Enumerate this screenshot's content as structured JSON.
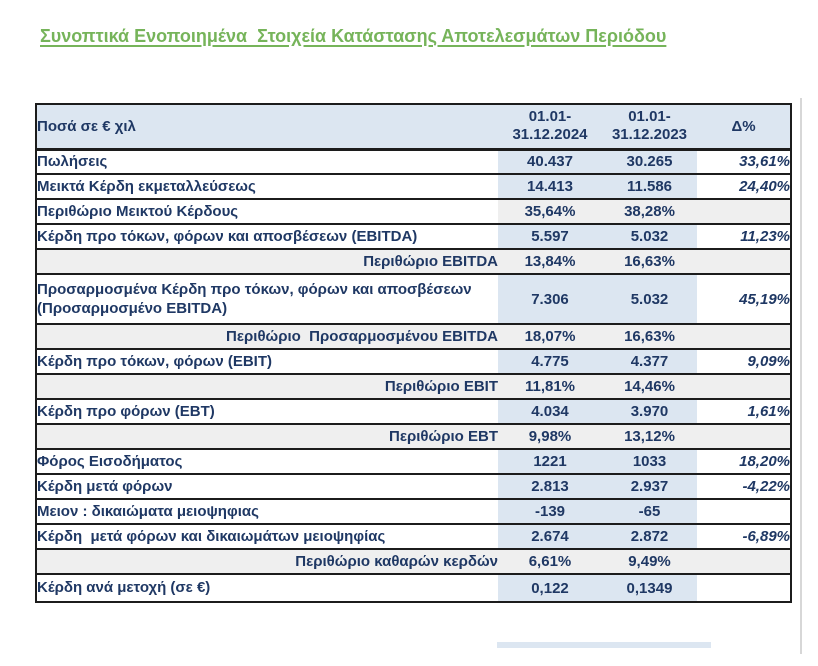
{
  "colors": {
    "title_green": "#76B45A",
    "navy": "#1F3864",
    "accent_blue": "#1F7EC2",
    "cell_blue": "#DCE6F1",
    "cell_gray": "#EFEFEF",
    "border_dark": "#1C1C1C"
  },
  "page_title": "Συνοπτικά Ενοποιημένα  Στοιχεία Κατάστασης Αποτελεσμάτων Περιόδου",
  "table": {
    "header": {
      "col_label": "Ποσά σε € χιλ",
      "col_2024_line1": "01.01-",
      "col_2024_line2": "31.12.2024",
      "col_2023_line1": "01.01-",
      "col_2023_line2": "31.12.2023",
      "col_delta": "Δ%"
    },
    "rows": [
      {
        "label": "Πωλήσεις",
        "v2024": "40.437",
        "v2023": "30.265",
        "delta": "33,61%",
        "type": "data"
      },
      {
        "label": "Μεικτά Κέρδη εκμεταλλεύσεως",
        "v2024": "14.413",
        "v2023": "11.586",
        "delta": "24,40%",
        "type": "data"
      },
      {
        "label": "Περιθώριο Μεικτού Κέρδους",
        "v2024": "35,64%",
        "v2023": "38,28%",
        "delta": "",
        "type": "margin-left"
      },
      {
        "label": "Κέρδη προ τόκων, φόρων και αποσβέσεων (EBITDA)",
        "v2024": "5.597",
        "v2023": "5.032",
        "delta": "11,23%",
        "type": "data"
      },
      {
        "label": "Περιθώριο EBITDA",
        "v2024": "13,84%",
        "v2023": "16,63%",
        "delta": "",
        "type": "margin"
      },
      {
        "label": "Προσαρμοσμένα Κέρδη προ τόκων, φόρων και αποσβέσεων (Προσαρμοσμένο EBITDA)",
        "v2024": "7.306",
        "v2023": "5.032",
        "delta": "45,19%",
        "type": "data-accent"
      },
      {
        "label": "Περιθώριο  Προσαρμοσμένου EBITDA",
        "v2024": "18,07%",
        "v2023": "16,63%",
        "delta": "",
        "type": "margin"
      },
      {
        "label": "Κέρδη προ τόκων, φόρων (EBIT)",
        "v2024": "4.775",
        "v2023": "4.377",
        "delta": "9,09%",
        "type": "data"
      },
      {
        "label": "Περιθώριο EBIT",
        "v2024": "11,81%",
        "v2023": "14,46%",
        "delta": "",
        "type": "margin"
      },
      {
        "label": "Κέρδη προ φόρων (EBT)",
        "v2024": "4.034",
        "v2023": "3.970",
        "delta": "1,61%",
        "type": "data"
      },
      {
        "label": "Περιθώριο EBT",
        "v2024": "9,98%",
        "v2023": "13,12%",
        "delta": "",
        "type": "margin"
      },
      {
        "label": "Φόρος Εισοδήματος",
        "v2024": "1221",
        "v2023": "1033",
        "delta": "18,20%",
        "type": "data"
      },
      {
        "label": "Κέρδη μετά φόρων",
        "v2024": "2.813",
        "v2023": "2.937",
        "delta": "-4,22%",
        "type": "data"
      },
      {
        "label": "Μειον : δικαιώματα μειοψηφιας",
        "v2024": "-139",
        "v2023": "-65",
        "delta": "",
        "type": "data"
      },
      {
        "label": "Κέρδη  μετά φόρων και δικαιωμάτων μειοψηφίας",
        "v2024": "2.674",
        "v2023": "2.872",
        "delta": "-6,89%",
        "type": "data"
      },
      {
        "label": "Περιθώριο καθαρών κερδών",
        "v2024": "6,61%",
        "v2023": "9,49%",
        "delta": "",
        "type": "margin"
      },
      {
        "label": "Κέρδη ανά μετοχή (σε €)",
        "v2024": "0,122",
        "v2023": "0,1349",
        "delta": "",
        "type": "data"
      }
    ]
  }
}
